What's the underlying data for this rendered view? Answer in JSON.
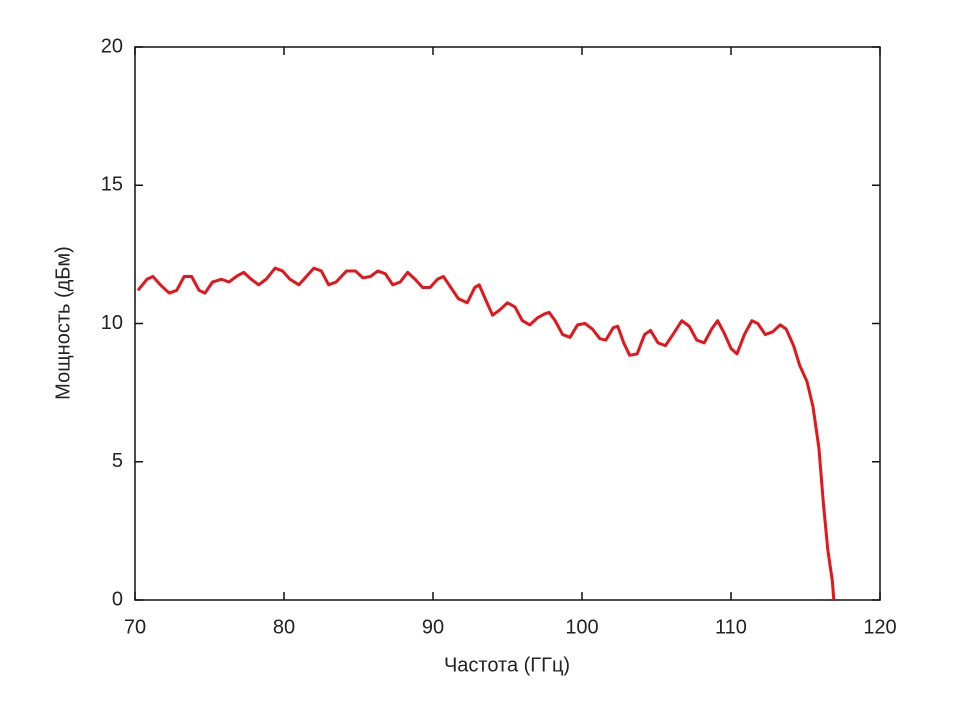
{
  "chart_data": {
    "type": "line",
    "xlabel": "Частота (ГГц)",
    "ylabel": "Мощность (дБм)",
    "xlim": [
      70,
      120
    ],
    "xticks": [
      70,
      80,
      90,
      100,
      110,
      120
    ],
    "ylim": [
      0,
      20
    ],
    "yticks": [
      0,
      5,
      10,
      15,
      20
    ],
    "grid": false,
    "series": [
      {
        "color": "#e8141a",
        "x": [
          70.2,
          70.8,
          71.2,
          71.7,
          72.3,
          72.8,
          73.3,
          73.8,
          74.3,
          74.7,
          75.2,
          75.8,
          76.3,
          76.8,
          77.3,
          77.8,
          78.3,
          78.8,
          79.4,
          79.9,
          80.4,
          81.0,
          81.5,
          82.0,
          82.5,
          83.0,
          83.5,
          84.2,
          84.8,
          85.3,
          85.8,
          86.3,
          86.8,
          87.3,
          87.8,
          88.3,
          88.8,
          89.3,
          89.8,
          90.3,
          90.7,
          91.2,
          91.7,
          92.3,
          92.8,
          93.1,
          93.5,
          94.0,
          94.5,
          95.0,
          95.5,
          96.0,
          96.5,
          97.0,
          97.5,
          97.8,
          98.2,
          98.7,
          99.2,
          99.7,
          100.2,
          100.7,
          101.2,
          101.6,
          102.1,
          102.4,
          102.8,
          103.2,
          103.7,
          104.2,
          104.6,
          105.1,
          105.6,
          106.1,
          106.7,
          107.2,
          107.7,
          108.2,
          108.7,
          109.1,
          109.5,
          110.0,
          110.4,
          110.9,
          111.4,
          111.8,
          112.3,
          112.8,
          113.3,
          113.7,
          114.2,
          114.6,
          115.1,
          115.5,
          115.9,
          116.2,
          116.5,
          116.8,
          116.9
        ],
        "values": [
          11.2,
          11.6,
          11.7,
          11.4,
          11.1,
          11.2,
          11.7,
          11.7,
          11.2,
          11.1,
          11.5,
          11.6,
          11.5,
          11.7,
          11.85,
          11.6,
          11.4,
          11.6,
          12.0,
          11.9,
          11.6,
          11.4,
          11.7,
          12.0,
          11.9,
          11.4,
          11.5,
          11.9,
          11.9,
          11.65,
          11.7,
          11.9,
          11.8,
          11.4,
          11.5,
          11.85,
          11.6,
          11.3,
          11.3,
          11.6,
          11.7,
          11.3,
          10.9,
          10.75,
          11.3,
          11.4,
          10.9,
          10.3,
          10.5,
          10.75,
          10.6,
          10.1,
          9.95,
          10.2,
          10.35,
          10.4,
          10.1,
          9.6,
          9.5,
          9.95,
          10.0,
          9.8,
          9.45,
          9.4,
          9.85,
          9.9,
          9.3,
          8.85,
          8.9,
          9.6,
          9.75,
          9.3,
          9.2,
          9.6,
          10.1,
          9.9,
          9.4,
          9.3,
          9.8,
          10.1,
          9.7,
          9.1,
          8.9,
          9.6,
          10.1,
          10.0,
          9.6,
          9.7,
          9.95,
          9.8,
          9.2,
          8.5,
          7.9,
          7.0,
          5.5,
          3.5,
          1.8,
          0.7,
          0.0
        ]
      }
    ]
  }
}
